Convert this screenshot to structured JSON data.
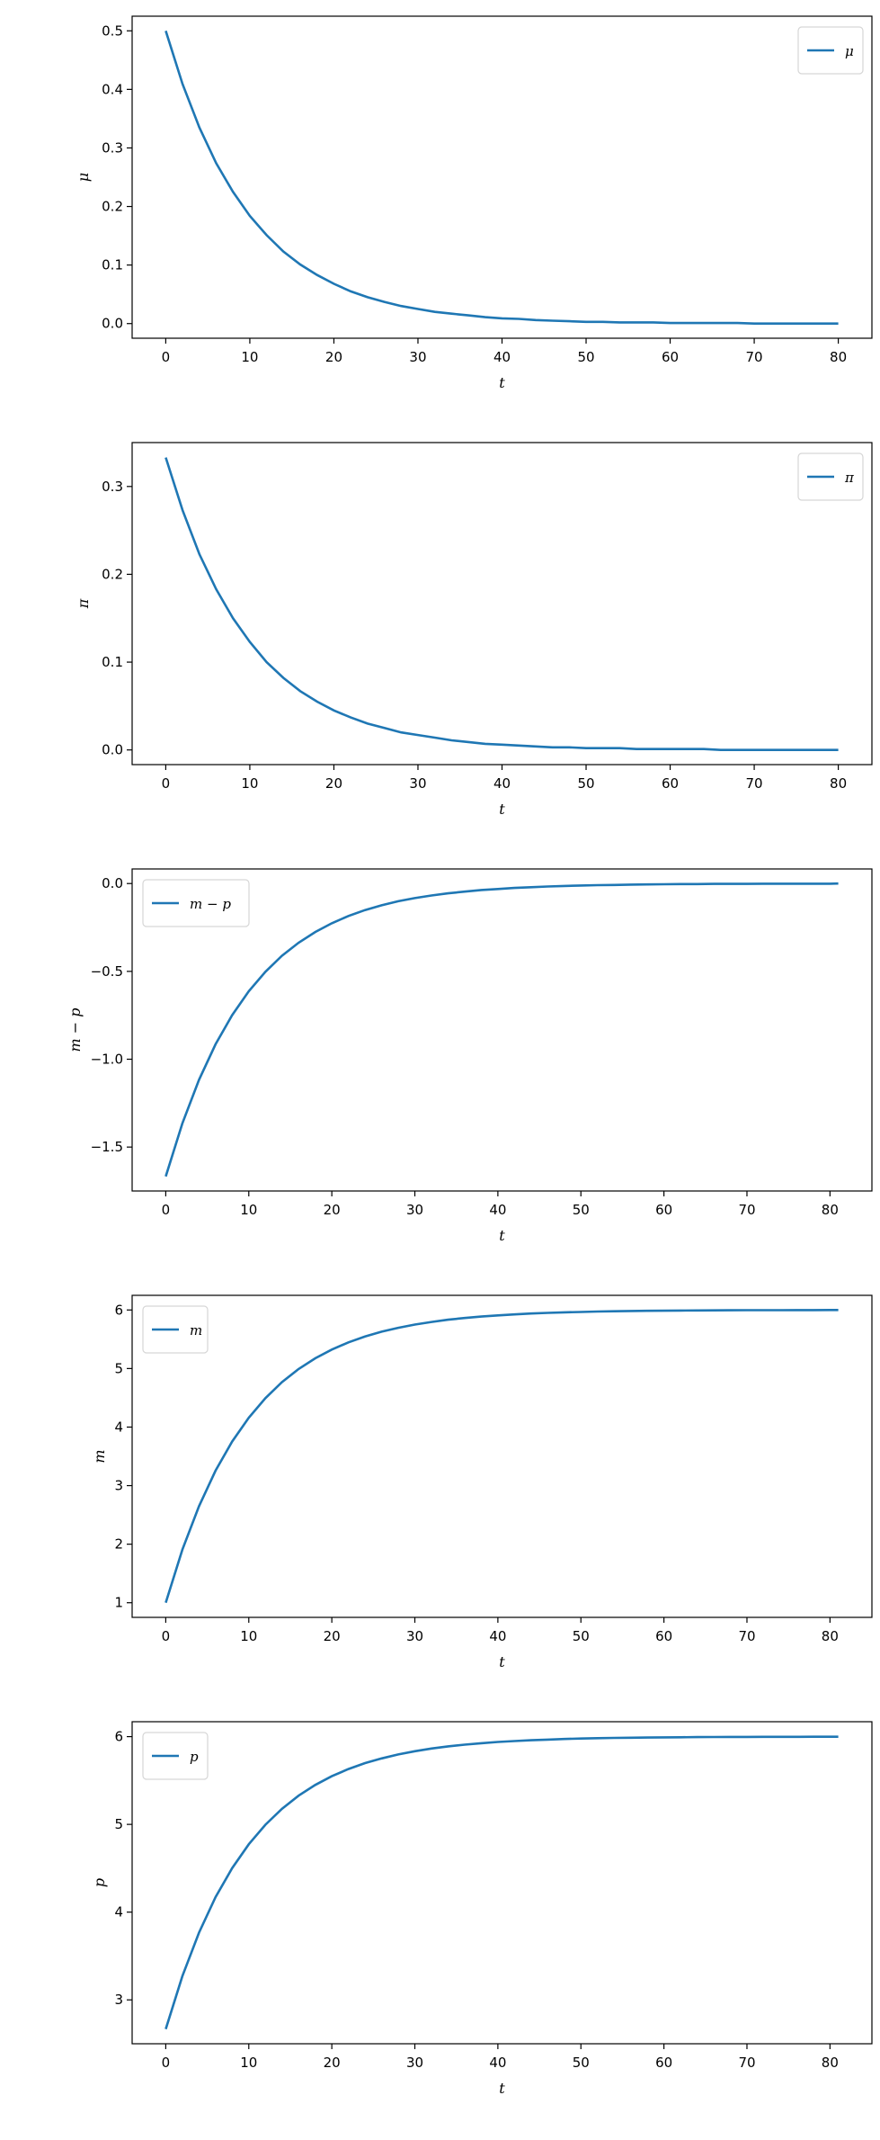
{
  "line_color": "#1f77b4",
  "chart_data": [
    {
      "type": "line",
      "xlabel": "t",
      "ylabel": "μ",
      "legend": "μ",
      "legend_loc": "upper-right",
      "ylim": [
        -0.025,
        0.525
      ],
      "xlim": [
        -4,
        84
      ],
      "xticks": [
        0,
        10,
        20,
        30,
        40,
        50,
        60,
        70,
        80
      ],
      "yticks": [
        0.0,
        0.1,
        0.2,
        0.3,
        0.4,
        0.5
      ],
      "ytick_labels": [
        "0.0",
        "0.1",
        "0.2",
        "0.3",
        "0.4",
        "0.5"
      ],
      "x_step": 2,
      "x_extra": [],
      "values": [
        0.5,
        0.409,
        0.335,
        0.274,
        0.225,
        0.184,
        0.151,
        0.123,
        0.101,
        0.083,
        0.068,
        0.055,
        0.045,
        0.037,
        0.03,
        0.025,
        0.02,
        0.017,
        0.014,
        0.011,
        0.009,
        0.008,
        0.006,
        0.005,
        0.004,
        0.003,
        0.003,
        0.002,
        0.002,
        0.002,
        0.001,
        0.001,
        0.001,
        0.001,
        0.001,
        0,
        0,
        0,
        0,
        0,
        0
      ]
    },
    {
      "type": "line",
      "xlabel": "t",
      "ylabel": "π",
      "legend": "π",
      "legend_loc": "upper-right",
      "ylim": [
        -0.0167,
        0.35
      ],
      "xlim": [
        -4,
        84
      ],
      "xticks": [
        0,
        10,
        20,
        30,
        40,
        50,
        60,
        70,
        80
      ],
      "yticks": [
        0.0,
        0.1,
        0.2,
        0.3
      ],
      "ytick_labels": [
        "0.0",
        "0.1",
        "0.2",
        "0.3"
      ],
      "x_step": 2,
      "x_extra": [],
      "values": [
        0.333,
        0.273,
        0.223,
        0.183,
        0.15,
        0.123,
        0.1,
        0.082,
        0.067,
        0.055,
        0.045,
        0.037,
        0.03,
        0.025,
        0.02,
        0.017,
        0.014,
        0.011,
        0.009,
        0.007,
        0.006,
        0.005,
        0.004,
        0.003,
        0.003,
        0.002,
        0.002,
        0.002,
        0.001,
        0.001,
        0.001,
        0.001,
        0.001,
        0,
        0,
        0,
        0,
        0,
        0,
        0,
        0
      ]
    },
    {
      "type": "line",
      "xlabel": "t",
      "ylabel": "m − p",
      "legend": "m − p",
      "legend_loc": "upper-left",
      "ylim": [
        -1.75,
        0.083
      ],
      "xlim": [
        -4.05,
        85.05
      ],
      "xticks": [
        0,
        10,
        20,
        30,
        40,
        50,
        60,
        70,
        80
      ],
      "yticks": [
        0.0,
        -0.5,
        -1.0,
        -1.5
      ],
      "ytick_labels": [
        "0.0",
        "−0.5",
        "−1.0",
        "−1.5"
      ],
      "x_step": 2,
      "x_extra": [
        [
          81,
          0
        ]
      ],
      "values": [
        -1.667,
        -1.365,
        -1.117,
        -0.915,
        -0.749,
        -0.613,
        -0.502,
        -0.411,
        -0.337,
        -0.276,
        -0.226,
        -0.185,
        -0.151,
        -0.124,
        -0.101,
        -0.083,
        -0.068,
        -0.056,
        -0.046,
        -0.037,
        -0.031,
        -0.025,
        -0.021,
        -0.017,
        -0.014,
        -0.011,
        -0.009,
        -0.008,
        -0.006,
        -0.005,
        -0.004,
        -0.003,
        -0.003,
        -0.002,
        -0.002,
        -0.002,
        -0.001,
        -0.001,
        -0.001,
        -0.001,
        -0.001
      ]
    },
    {
      "type": "line",
      "xlabel": "t",
      "ylabel": "m",
      "legend": "m",
      "legend_loc": "upper-left",
      "ylim": [
        0.75,
        6.25
      ],
      "xlim": [
        -4.05,
        85.05
      ],
      "xticks": [
        0,
        10,
        20,
        30,
        40,
        50,
        60,
        70,
        80
      ],
      "yticks": [
        1,
        2,
        3,
        4,
        5,
        6
      ],
      "ytick_labels": [
        "1",
        "2",
        "3",
        "4",
        "5",
        "6"
      ],
      "x_step": 2,
      "x_extra": [
        [
          81,
          5.999
        ]
      ],
      "values": [
        1,
        1.907,
        2.649,
        3.256,
        3.753,
        4.161,
        4.494,
        4.767,
        4.991,
        5.174,
        5.323,
        5.446,
        5.547,
        5.629,
        5.696,
        5.751,
        5.796,
        5.833,
        5.863,
        5.888,
        5.908,
        5.925,
        5.939,
        5.95,
        5.959,
        5.966,
        5.973,
        5.978,
        5.982,
        5.985,
        5.988,
        5.99,
        5.992,
        5.993,
        5.995,
        5.996,
        5.997,
        5.997,
        5.998,
        5.998,
        5.999
      ]
    },
    {
      "type": "line",
      "xlabel": "t",
      "ylabel": "p",
      "legend": "p",
      "legend_loc": "upper-left",
      "ylim": [
        2.5,
        6.17
      ],
      "xlim": [
        -4.05,
        85.05
      ],
      "xticks": [
        0,
        10,
        20,
        30,
        40,
        50,
        60,
        70,
        80
      ],
      "yticks": [
        3,
        4,
        5,
        6
      ],
      "ytick_labels": [
        "3",
        "4",
        "5",
        "6"
      ],
      "x_step": 2,
      "x_extra": [
        [
          81,
          5.999
        ]
      ],
      "values": [
        2.667,
        3.271,
        3.766,
        4.171,
        4.502,
        4.774,
        4.996,
        5.178,
        5.327,
        5.449,
        5.549,
        5.631,
        5.698,
        5.752,
        5.797,
        5.834,
        5.864,
        5.889,
        5.909,
        5.925,
        5.939,
        5.95,
        5.959,
        5.966,
        5.973,
        5.978,
        5.982,
        5.985,
        5.988,
        5.99,
        5.992,
        5.993,
        5.995,
        5.996,
        5.997,
        5.997,
        5.998,
        5.998,
        5.998,
        5.999,
        5.999
      ]
    }
  ]
}
